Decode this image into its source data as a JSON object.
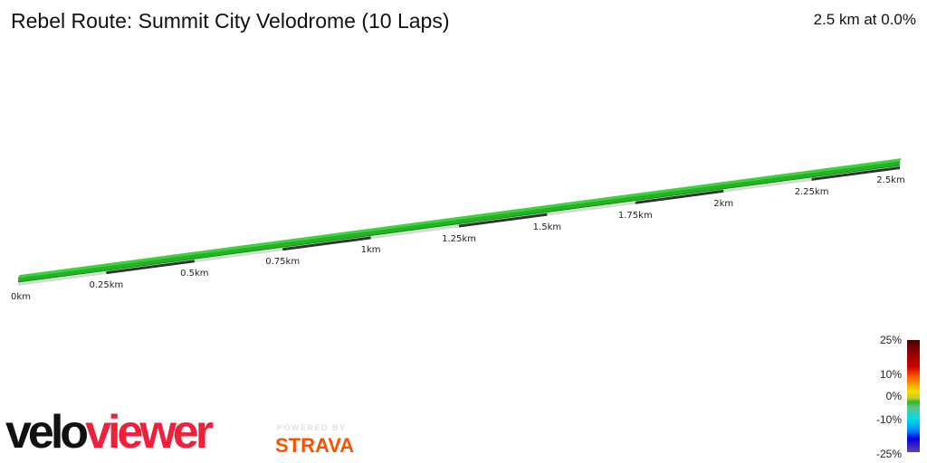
{
  "header": {
    "title": "Rebel Route: Summit City Velodrome (10 Laps)",
    "summary": "2.5 km at 0.0%"
  },
  "chart_data": {
    "type": "3d-elevation-profile",
    "title": "Rebel Route: Summit City Velodrome (10 Laps)",
    "subtitle": "2.5 km at 0.0%",
    "distance_km": 2.5,
    "average_gradient_pct": 0.0,
    "x": [
      0,
      0.25,
      0.5,
      0.75,
      1,
      1.25,
      1.5,
      1.75,
      2,
      2.25,
      2.5
    ],
    "tick_labels": [
      "0km",
      "0.25km",
      "0.5km",
      "0.75km",
      "1km",
      "1.25km",
      "1.5km",
      "1.75km",
      "2km",
      "2.25km",
      "2.5km"
    ],
    "gradient_pct": [
      0,
      0,
      0,
      0,
      0,
      0,
      0,
      0,
      0,
      0,
      0
    ],
    "segment_color": "#22b422",
    "legend": {
      "type": "colorscale",
      "position": "bottom-right",
      "labels": [
        "25%",
        "10%",
        "0%",
        "-10%",
        "-25%"
      ],
      "values": [
        25,
        10,
        0,
        -10,
        -25
      ]
    },
    "grid": false
  },
  "branding": {
    "logo_part1": "velo",
    "logo_part2": "viewer",
    "powered_by": "POWERED BY",
    "strava": "STRAVA"
  },
  "colors": {
    "ribbon_top": "#22b422",
    "ribbon_highlight": "#3cd23c",
    "ribbon_side": "#0e8a0e",
    "base_light": "#d8d8d8",
    "base_dark": "#333333",
    "velo": "#111111",
    "viewer": "#f0203a",
    "strava": "#fc5200"
  }
}
